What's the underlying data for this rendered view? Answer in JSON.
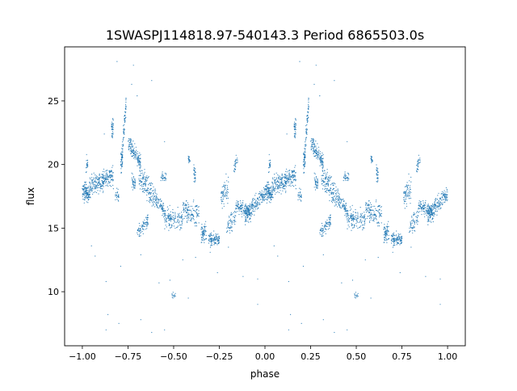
{
  "chart_data": {
    "type": "scatter",
    "title": "1SWASPJ114818.97-540143.3 Period 6865503.0s",
    "xlabel": "phase",
    "ylabel": "flux",
    "xlim": [
      -1.097,
      1.097
    ],
    "ylim": [
      5.75,
      29.25
    ],
    "xticks": [
      -1.0,
      -0.75,
      -0.5,
      -0.25,
      0.0,
      0.25,
      0.5,
      0.75,
      1.0
    ],
    "xtick_labels": [
      "−1.00",
      "−0.75",
      "−0.50",
      "−0.25",
      "0.00",
      "0.25",
      "0.50",
      "0.75",
      "1.00"
    ],
    "yticks": [
      10,
      15,
      20,
      25
    ],
    "ytick_labels": [
      "10",
      "15",
      "20",
      "25"
    ],
    "grid": false,
    "marker_color": "#1f77b4",
    "note_repeat": "phase -1..0 data repeated at phase 0..1",
    "point_clusters_columns": [
      "phase_start",
      "phase_end",
      "flux_start",
      "flux_end",
      "flux_spread",
      "count"
    ],
    "point_clusters": [
      [
        -1.0,
        -0.96,
        17.8,
        17.8,
        0.6,
        120
      ],
      [
        -0.96,
        -0.88,
        18.3,
        18.8,
        0.7,
        160
      ],
      [
        -0.98,
        -0.97,
        20.0,
        20.0,
        0.5,
        20
      ],
      [
        -0.88,
        -0.83,
        18.8,
        19.3,
        0.6,
        90
      ],
      [
        -0.84,
        -0.83,
        22.8,
        22.8,
        0.7,
        40
      ],
      [
        -0.82,
        -0.8,
        17.6,
        17.6,
        0.4,
        25
      ],
      [
        -0.79,
        -0.78,
        19.8,
        20.6,
        0.8,
        50
      ],
      [
        -0.78,
        -0.76,
        21.0,
        24.8,
        0.8,
        60
      ],
      [
        -0.75,
        -0.68,
        21.7,
        20.2,
        0.5,
        140
      ],
      [
        -0.73,
        -0.71,
        18.6,
        18.6,
        0.5,
        40
      ],
      [
        -0.69,
        -0.6,
        19.2,
        17.3,
        0.8,
        160
      ],
      [
        -0.7,
        -0.64,
        14.6,
        15.6,
        0.5,
        80
      ],
      [
        -0.6,
        -0.55,
        17.3,
        16.4,
        0.5,
        80
      ],
      [
        -0.57,
        -0.54,
        19.0,
        19.0,
        0.4,
        30
      ],
      [
        -0.55,
        -0.45,
        15.8,
        15.6,
        0.6,
        140
      ],
      [
        -0.51,
        -0.49,
        9.7,
        9.7,
        0.3,
        14
      ],
      [
        -0.42,
        -0.41,
        20.5,
        20.3,
        0.2,
        20
      ],
      [
        -0.45,
        -0.36,
        16.6,
        16.0,
        0.7,
        130
      ],
      [
        -0.39,
        -0.38,
        19.3,
        19.3,
        0.6,
        30
      ],
      [
        -0.35,
        -0.32,
        14.5,
        14.5,
        0.7,
        70
      ],
      [
        -0.31,
        -0.25,
        14.1,
        14.1,
        0.4,
        110
      ],
      [
        -0.24,
        -0.2,
        17.3,
        18.2,
        0.8,
        70
      ],
      [
        -0.21,
        -0.16,
        15.2,
        15.8,
        0.6,
        60
      ],
      [
        -0.17,
        -0.15,
        19.6,
        20.5,
        0.5,
        30
      ],
      [
        -0.16,
        -0.08,
        16.8,
        16.2,
        0.5,
        140
      ],
      [
        -0.11,
        -0.02,
        15.8,
        17.6,
        0.6,
        150
      ],
      [
        -0.02,
        0.0,
        17.4,
        17.6,
        0.4,
        40
      ]
    ],
    "outliers": [
      [
        -0.81,
        28.1
      ],
      [
        -0.72,
        27.8
      ],
      [
        -0.62,
        26.6
      ],
      [
        -0.73,
        26.3
      ],
      [
        -0.7,
        25.4
      ],
      [
        -0.88,
        22.4
      ],
      [
        -0.55,
        21.8
      ],
      [
        -0.83,
        18.1
      ],
      [
        -0.95,
        13.6
      ],
      [
        -0.93,
        12.8
      ],
      [
        -0.87,
        10.8
      ],
      [
        -0.79,
        12.0
      ],
      [
        -0.68,
        12.9
      ],
      [
        -0.58,
        10.7
      ],
      [
        -0.52,
        10.9
      ],
      [
        -0.86,
        8.2
      ],
      [
        -0.8,
        7.5
      ],
      [
        -0.68,
        7.8
      ],
      [
        -0.62,
        6.8
      ],
      [
        -0.87,
        7.0
      ],
      [
        -0.45,
        12.5
      ],
      [
        -0.3,
        13.1
      ],
      [
        -0.12,
        11.2
      ],
      [
        -0.04,
        11.0
      ],
      [
        -0.04,
        9.0
      ],
      [
        -0.2,
        13.5
      ],
      [
        -0.42,
        9.5
      ],
      [
        -0.55,
        7.0
      ],
      [
        -0.38,
        12.7
      ],
      [
        -0.26,
        11.5
      ]
    ]
  }
}
